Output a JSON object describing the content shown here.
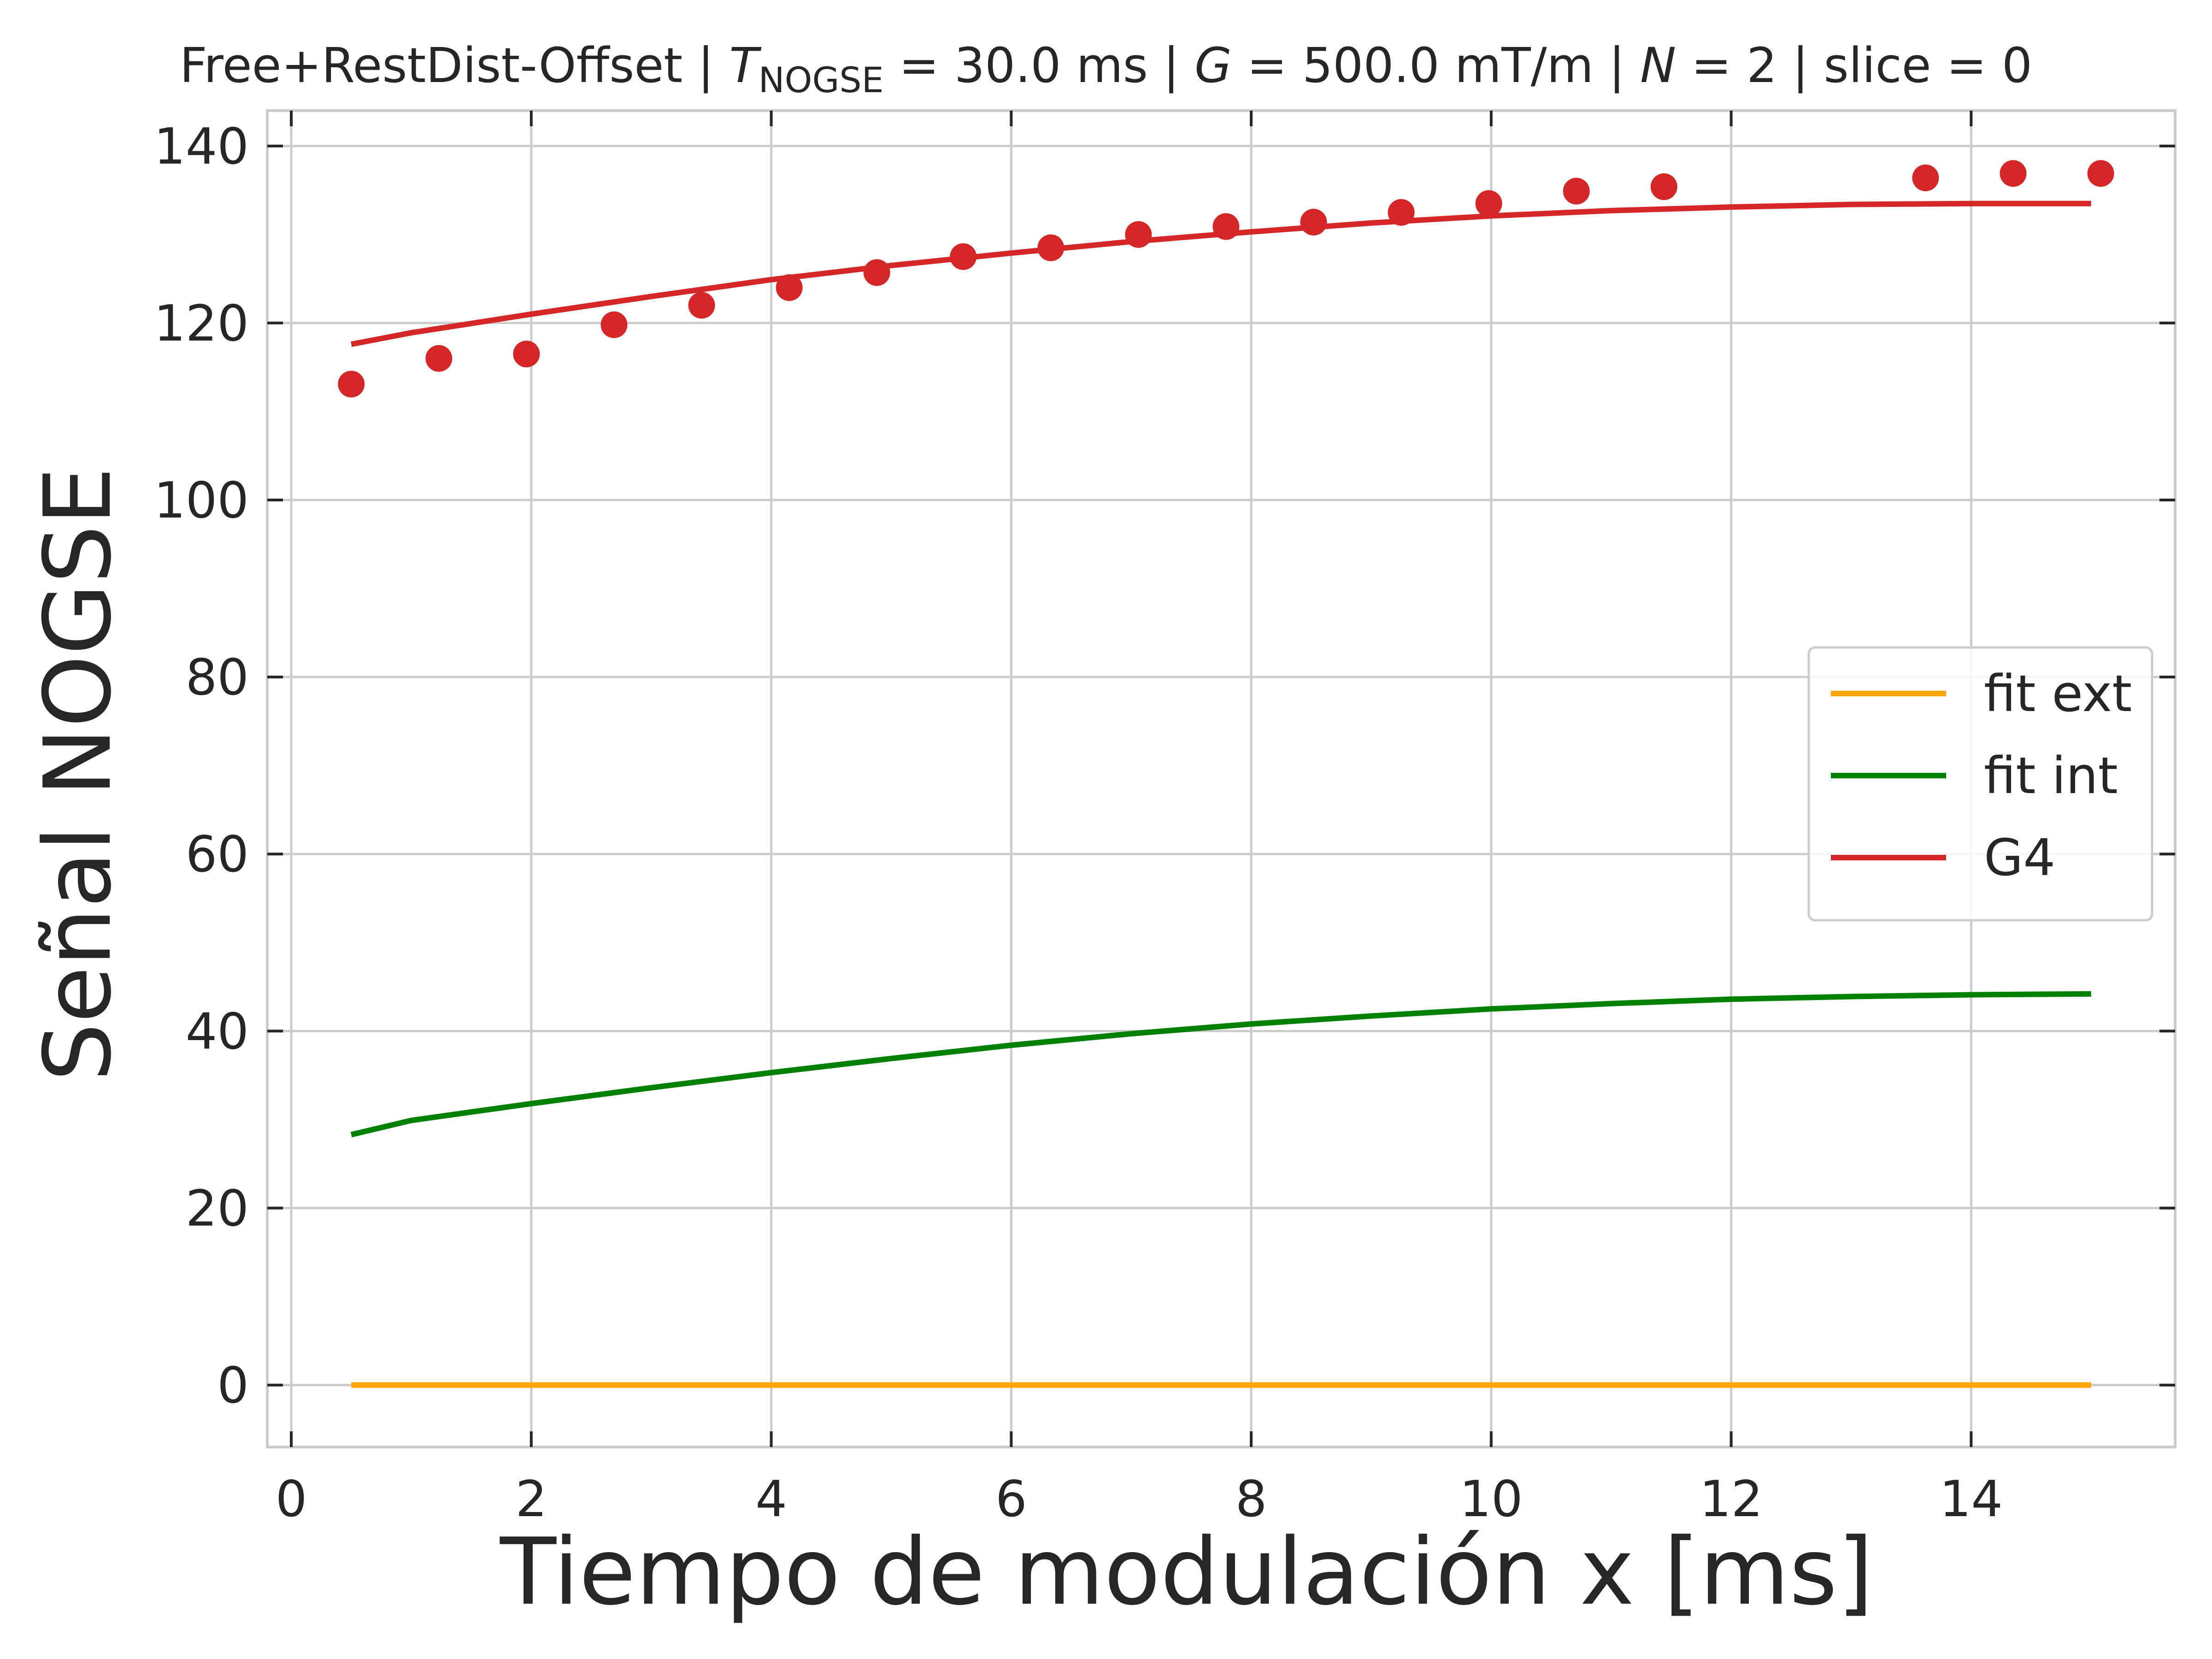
{
  "chart_data": {
    "type": "line",
    "title": {
      "prefix": "Free+RestDist-Offset | ",
      "t_symbol": "T",
      "t_subscript": "NOGSE",
      "t_value": " = 30.0 ms | ",
      "g_symbol": "G",
      "g_value": " = 500.0 mT/m | ",
      "n_symbol": "N",
      "n_value": " = 2 | slice = 0"
    },
    "xlabel": "Tiempo de modulación x [ms]",
    "ylabel": "Señal NOGSE",
    "xlim": [
      -0.2,
      15.7
    ],
    "ylim": [
      -7,
      144
    ],
    "xticks": [
      0,
      2,
      4,
      6,
      8,
      10,
      12,
      14
    ],
    "xtick_labels": [
      "0",
      "2",
      "4",
      "6",
      "8",
      "10",
      "12",
      "14"
    ],
    "yticks": [
      0,
      20,
      40,
      60,
      80,
      100,
      120,
      140
    ],
    "ytick_labels": [
      "0",
      "20",
      "40",
      "60",
      "80",
      "100",
      "120",
      "140"
    ],
    "grid": true,
    "legend_placement": "center-right",
    "series": [
      {
        "name": "fit ext",
        "kind": "line",
        "color": "#ffa500",
        "x": [
          0.5,
          2,
          4,
          6,
          8,
          10,
          12,
          14,
          15
        ],
        "y": [
          0,
          0,
          0,
          0,
          0,
          0,
          0,
          0,
          0
        ]
      },
      {
        "name": "fit int",
        "kind": "line",
        "color": "#008000",
        "x": [
          0.5,
          1,
          2,
          3,
          4,
          5,
          6,
          7,
          8,
          9,
          10,
          11,
          12,
          13,
          14,
          15
        ],
        "y": [
          28.3,
          29.9,
          31.8,
          33.6,
          35.3,
          36.9,
          38.4,
          39.7,
          40.8,
          41.7,
          42.5,
          43.1,
          43.6,
          43.9,
          44.1,
          44.2
        ]
      },
      {
        "name": "G4",
        "kind": "line",
        "color": "#d62728",
        "x": [
          0.5,
          1,
          2,
          3,
          4,
          5,
          6,
          7,
          8,
          9,
          10,
          11,
          12,
          13,
          14,
          15
        ],
        "y": [
          117.6,
          118.9,
          121.0,
          123.0,
          124.9,
          126.5,
          127.9,
          129.2,
          130.3,
          131.3,
          132.1,
          132.7,
          133.1,
          133.4,
          133.5,
          133.5
        ]
      },
      {
        "name": "G4 data",
        "kind": "scatter",
        "color": "#d62728",
        "x": [
          0.5,
          1.23,
          1.96,
          2.69,
          3.42,
          4.15,
          4.88,
          5.6,
          6.33,
          7.06,
          7.79,
          8.52,
          9.25,
          9.98,
          10.71,
          11.44,
          13.62,
          14.35,
          15.08
        ],
        "y": [
          113.1,
          116.0,
          116.5,
          119.8,
          122.0,
          124.0,
          125.7,
          127.5,
          128.5,
          130.0,
          130.9,
          131.4,
          132.5,
          133.5,
          134.9,
          135.4,
          136.4,
          136.9,
          136.9
        ]
      }
    ],
    "legend": [
      {
        "label": "fit ext",
        "color": "#ffa500"
      },
      {
        "label": "fit int",
        "color": "#008000"
      },
      {
        "label": "G4",
        "color": "#d62728"
      }
    ]
  }
}
